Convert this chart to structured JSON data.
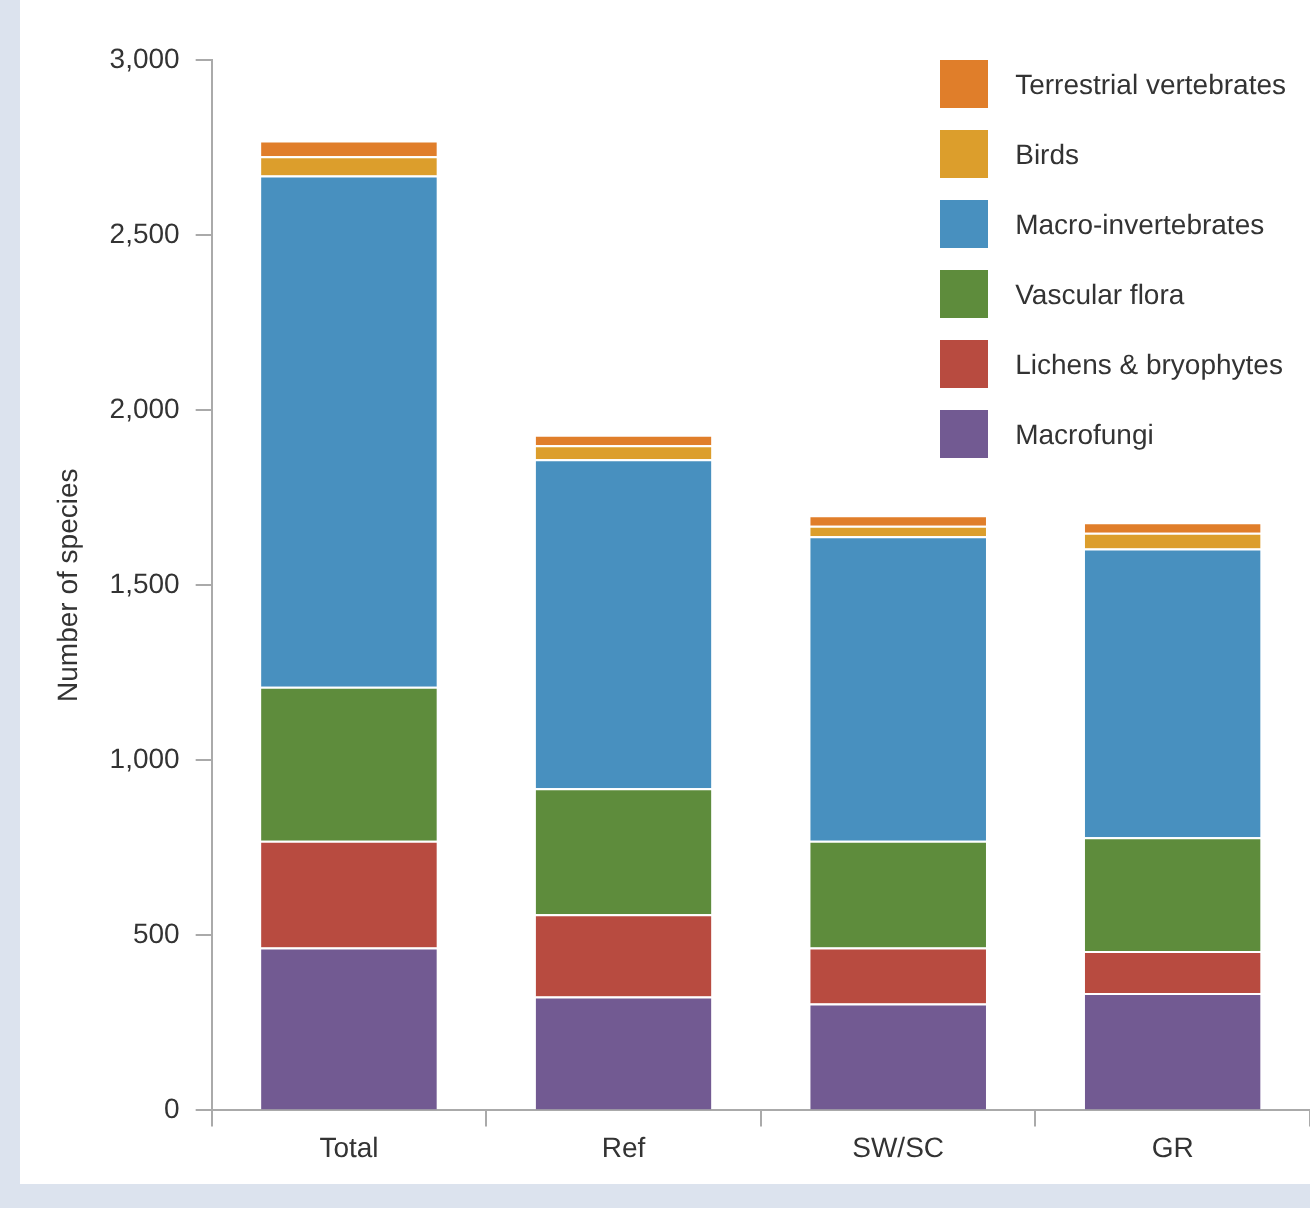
{
  "chart_data": {
    "type": "bar",
    "stacked": true,
    "ylabel": "Number of species",
    "categories": [
      "Total",
      "Ref",
      "SW/SC",
      "GR"
    ],
    "ylim": [
      0,
      3000
    ],
    "yticks": [
      0,
      500,
      {
        "value": 1000,
        "label": "1,000"
      },
      {
        "value": 1500,
        "label": "1,500"
      },
      {
        "value": 2000,
        "label": "2,000"
      },
      {
        "value": 2500,
        "label": "2,500"
      },
      {
        "value": 3000,
        "label": "3,000"
      }
    ],
    "grid": false,
    "legend": "top right",
    "series": [
      {
        "name": "Macrofungi",
        "color": "#725a92",
        "values": [
          465,
          325,
          305,
          335
        ]
      },
      {
        "name": "Lichens & bryophytes",
        "color": "#b84b40",
        "values": [
          305,
          235,
          160,
          120
        ]
      },
      {
        "name": "Vascular flora",
        "color": "#5e8c3c",
        "values": [
          440,
          360,
          305,
          325
        ]
      },
      {
        "name": "Macro-invertebrates",
        "color": "#4890bf",
        "values": [
          1460,
          940,
          870,
          825
        ]
      },
      {
        "name": "Birds",
        "color": "#dc9e2c",
        "values": [
          55,
          40,
          30,
          45
        ]
      },
      {
        "name": "Terrestrial vertebrates",
        "color": "#e07e2a",
        "values": [
          45,
          30,
          30,
          30
        ]
      }
    ]
  }
}
